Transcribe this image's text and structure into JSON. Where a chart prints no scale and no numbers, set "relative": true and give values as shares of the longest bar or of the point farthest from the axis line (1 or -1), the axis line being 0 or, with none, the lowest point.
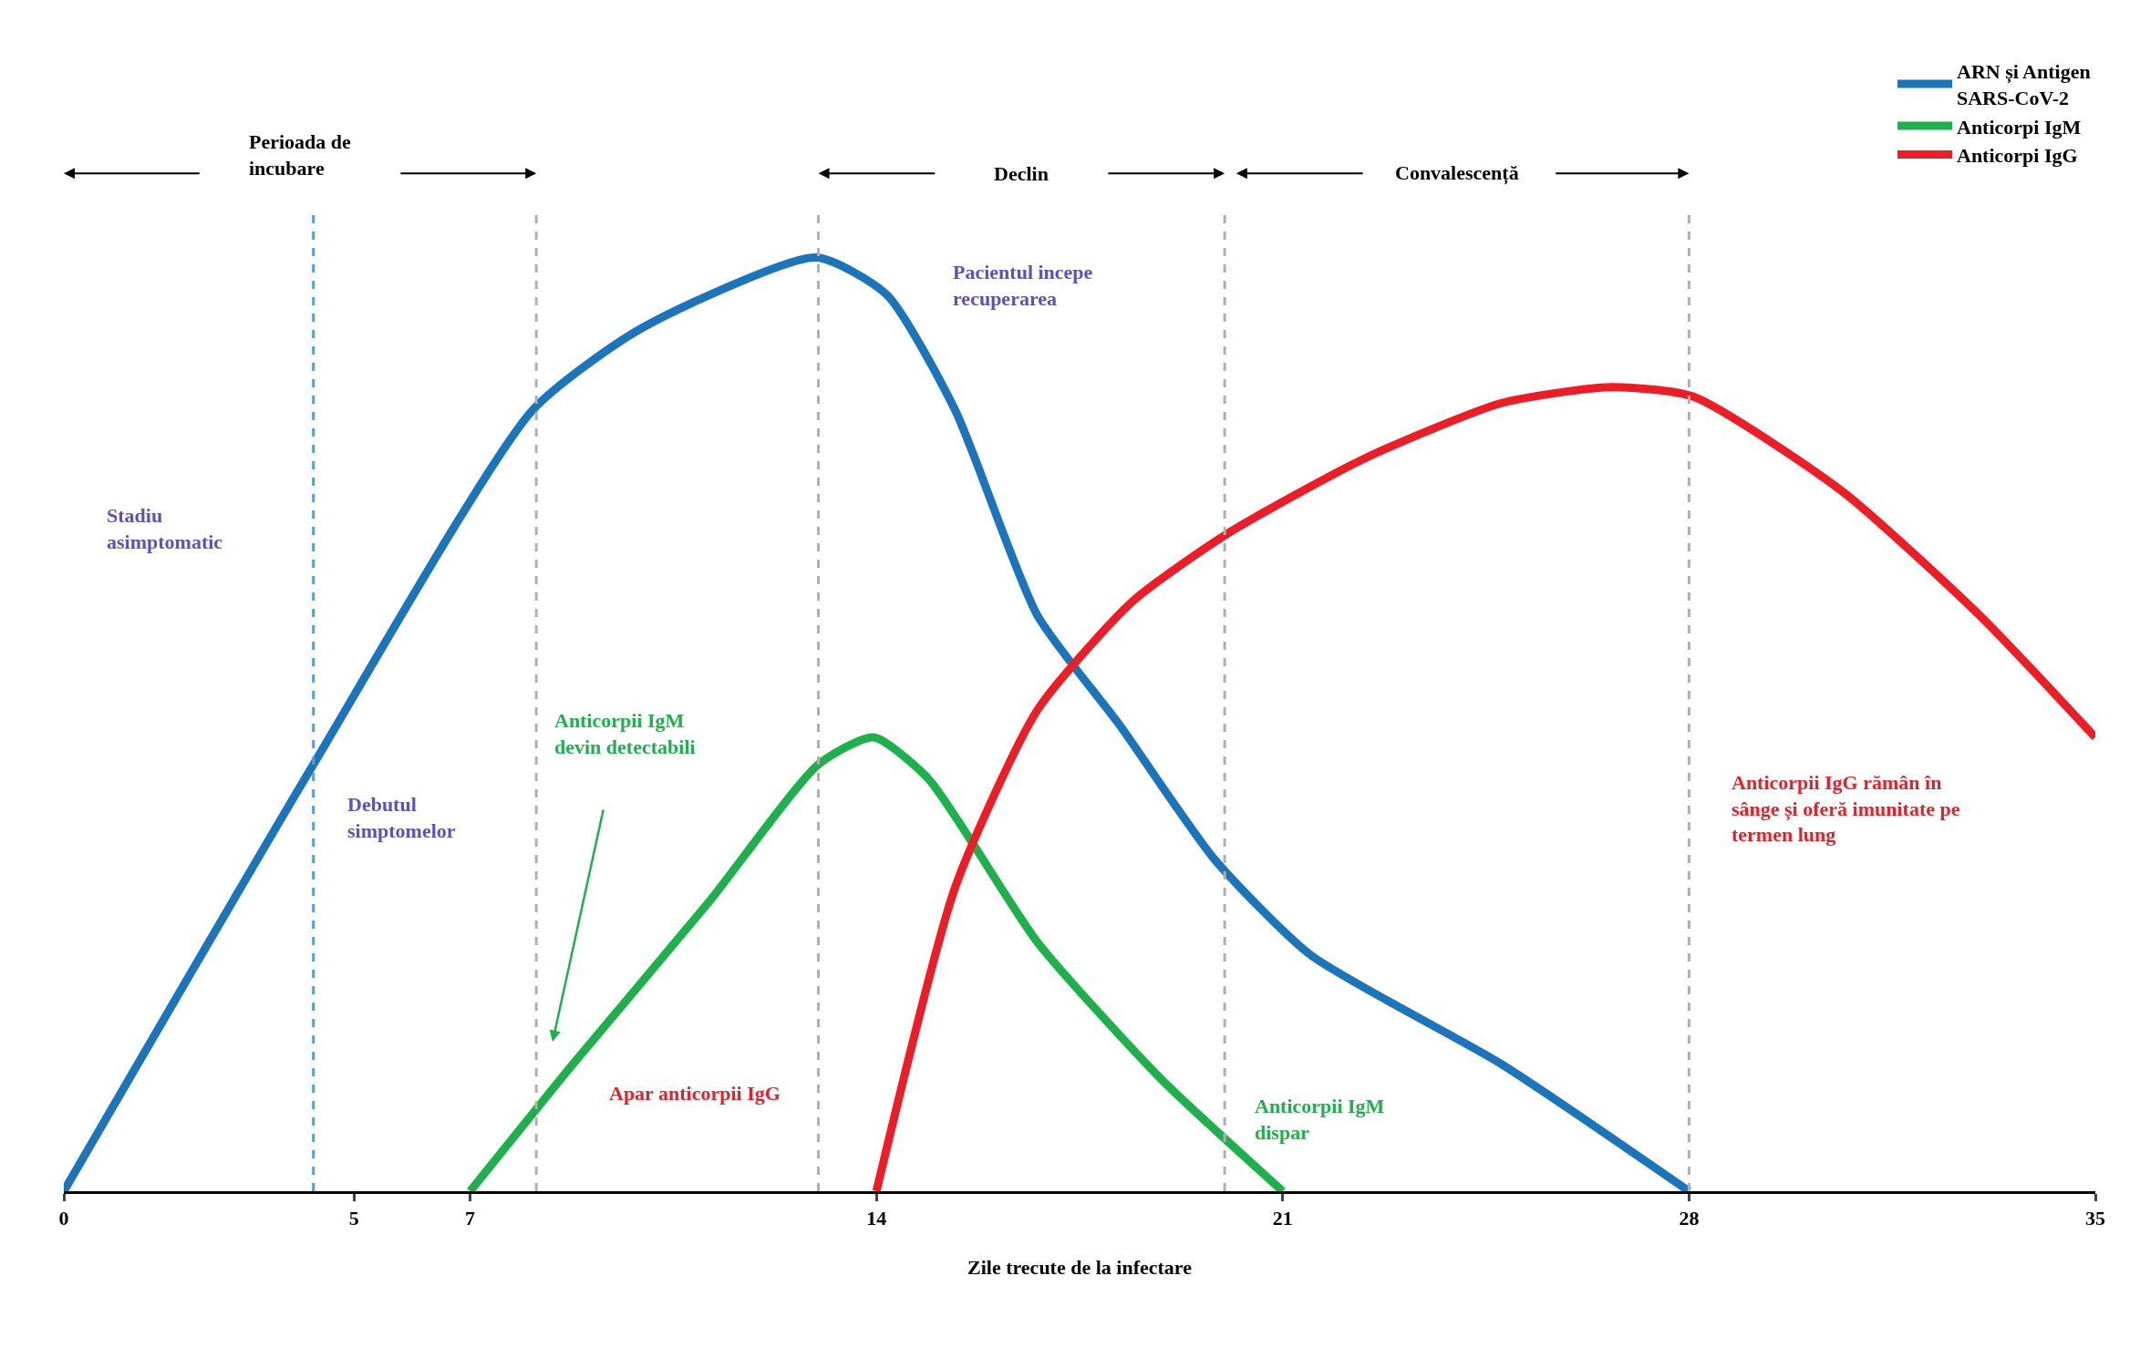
{
  "chart_data": {
    "type": "line",
    "relative": true,
    "xlabel": "Zile trecute de la infectare",
    "xlim": [
      0,
      35
    ],
    "xticks": [
      0,
      5,
      7,
      14,
      21,
      28,
      35
    ],
    "legend": "top right",
    "marker": "none",
    "line_style": "solid",
    "series": [
      {
        "name": "ARN și Antigen\nSARS-CoV-2",
        "color": "#1a75bc",
        "x": [
          0,
          4.3,
          8.07,
          9.95,
          12.96,
          14.18,
          15.36,
          16.77,
          18.18,
          19.83,
          21.48,
          24.77,
          28
        ],
        "values": [
          0,
          0.457,
          0.836,
          0.924,
          1.0,
          0.96,
          0.836,
          0.617,
          0.5,
          0.355,
          0.253,
          0.136,
          0
        ]
      },
      {
        "name": "Anticorpi IgM",
        "color": "#1db14b",
        "x": [
          7,
          8.77,
          11.13,
          13.0,
          13.95,
          14.89,
          16.77,
          18.89,
          21
        ],
        "values": [
          0,
          0.136,
          0.311,
          0.457,
          0.486,
          0.442,
          0.267,
          0.121,
          0
        ]
      },
      {
        "name": "Anticorpi IgG",
        "color": "#ee1c25",
        "x": [
          14,
          15.36,
          16.77,
          18.42,
          20.07,
          22.42,
          24.77,
          26.65,
          28.07,
          30.65,
          33.0,
          35
        ],
        "values": [
          0,
          0.326,
          0.515,
          0.632,
          0.705,
          0.785,
          0.844,
          0.861,
          0.851,
          0.749,
          0.617,
          0.486
        ]
      }
    ],
    "ref_lines": [
      {
        "axis": "x",
        "value": 4.3,
        "color": "#5b9bd5",
        "line_style": "dashed"
      },
      {
        "axis": "x",
        "value": 8.14,
        "color": "#b0b0b0",
        "line_style": "dashed"
      },
      {
        "axis": "x",
        "value": 13,
        "color": "#b0b0b0",
        "line_style": "dashed"
      },
      {
        "axis": "x",
        "value": 20,
        "color": "#b0b0b0",
        "line_style": "dashed"
      },
      {
        "axis": "x",
        "value": 28,
        "color": "#b0b0b0",
        "line_style": "dashed"
      }
    ],
    "annotations": [
      "Perioada de\nincubare",
      "Declin",
      "Convalescență",
      "Stadiu\nasimptomatic",
      "Debutul\nsimptomelor",
      "Anticorpii IgM\ndevin detectabili",
      "Apar anticorpii IgG",
      "Pacientul incepe\nrecuperarea",
      "Anticorpii IgM\ndispar",
      "Anticorpii IgG rămân în\nsânge și oferă imunitate pe\ntermen lung"
    ]
  }
}
